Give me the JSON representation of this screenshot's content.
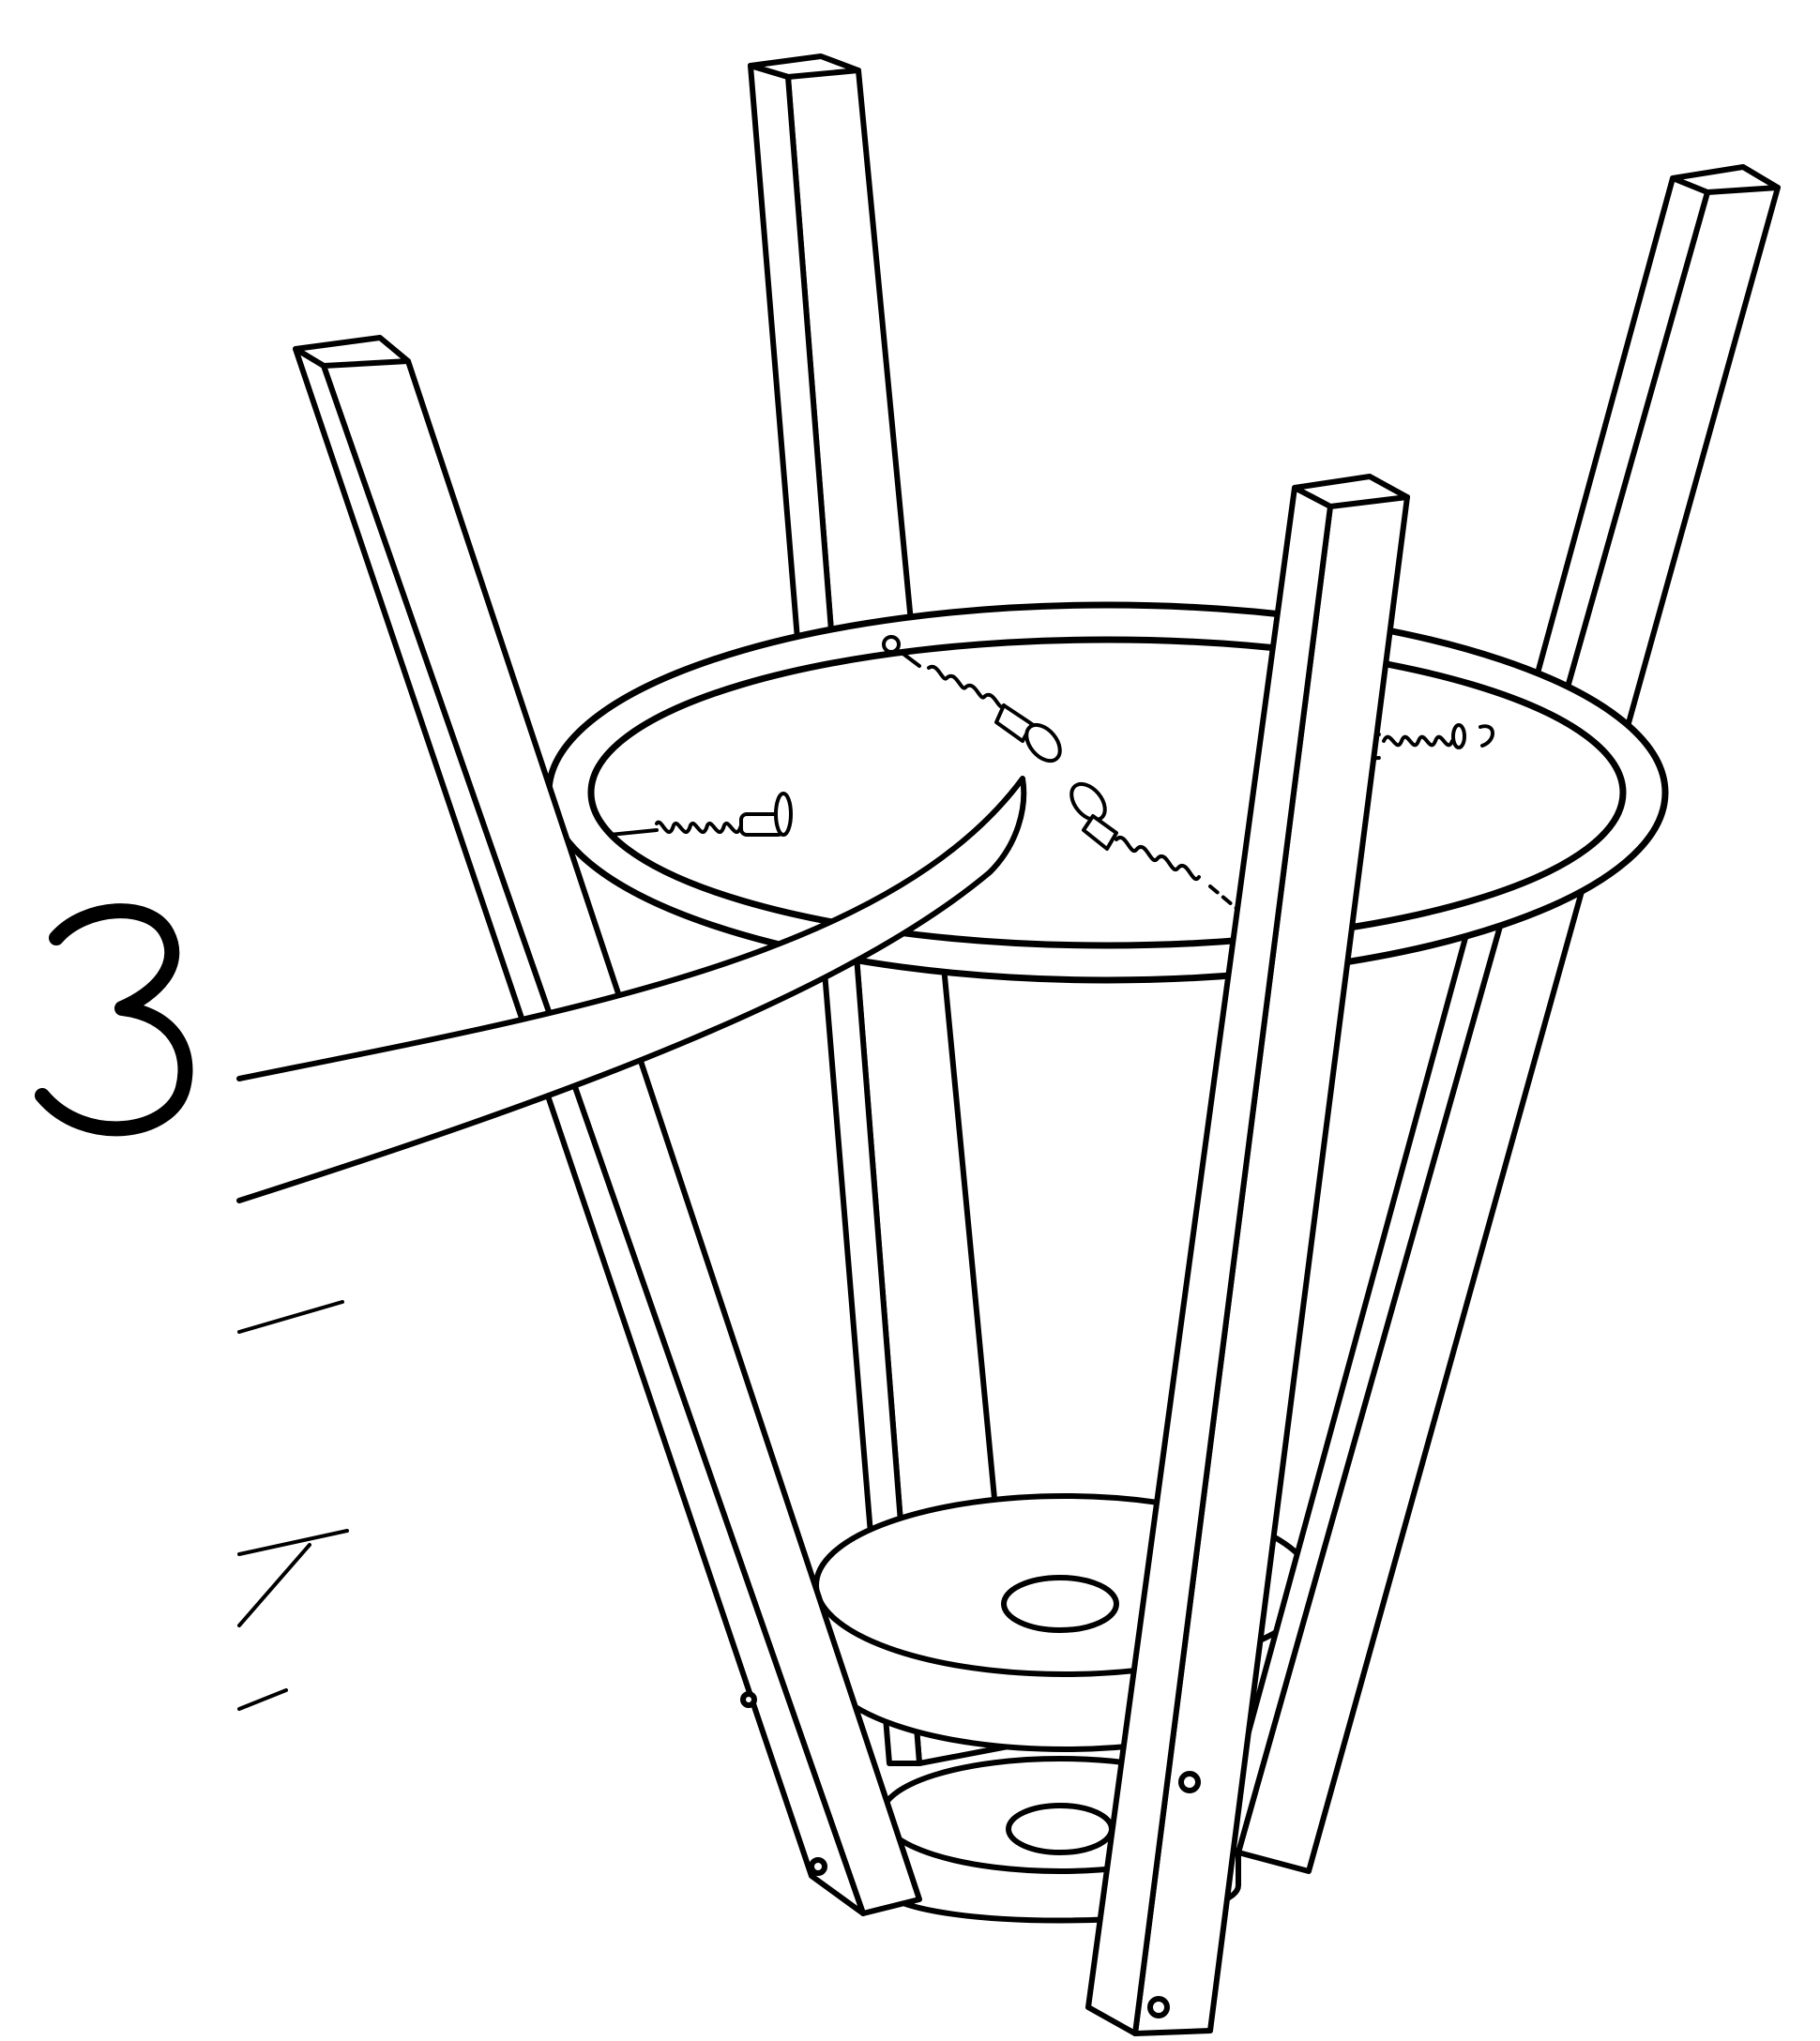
{
  "step": {
    "number": "3"
  },
  "colors": {
    "stroke": "#000000",
    "fill": "#ffffff"
  },
  "parts": {
    "legs": 4,
    "screws": 4,
    "ring": "upper-ring",
    "base_plates": 2
  }
}
